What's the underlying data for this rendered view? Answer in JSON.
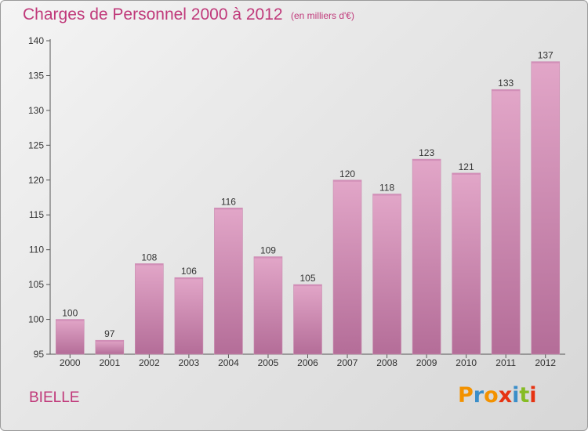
{
  "title": "Charges de Personnel 2000 à 2012",
  "subtitle": "(en milliers d'€)",
  "commune": "BIELLE",
  "logo": {
    "text": "Proxiti",
    "letters": [
      "P",
      "r",
      "o",
      "x",
      "i",
      "t",
      "i"
    ],
    "colors": [
      "#f39200",
      "#3a8ec9",
      "#f39200",
      "#e63312",
      "#3a8ec9",
      "#86bc25",
      "#e63312"
    ]
  },
  "colors": {
    "accent": "#c0397a",
    "bar_top": "#e2a6c8",
    "bar_bottom": "#b46d98"
  },
  "chart_data": {
    "type": "bar",
    "categories": [
      "2000",
      "2001",
      "2002",
      "2003",
      "2004",
      "2005",
      "2006",
      "2007",
      "2008",
      "2009",
      "2010",
      "2011",
      "2012"
    ],
    "values": [
      100,
      97,
      108,
      106,
      116,
      109,
      105,
      120,
      118,
      123,
      121,
      133,
      137
    ],
    "ylim": [
      95,
      140
    ],
    "yticks": [
      95,
      100,
      105,
      110,
      115,
      120,
      125,
      130,
      135,
      140
    ],
    "data_labels": true,
    "grid": false
  }
}
